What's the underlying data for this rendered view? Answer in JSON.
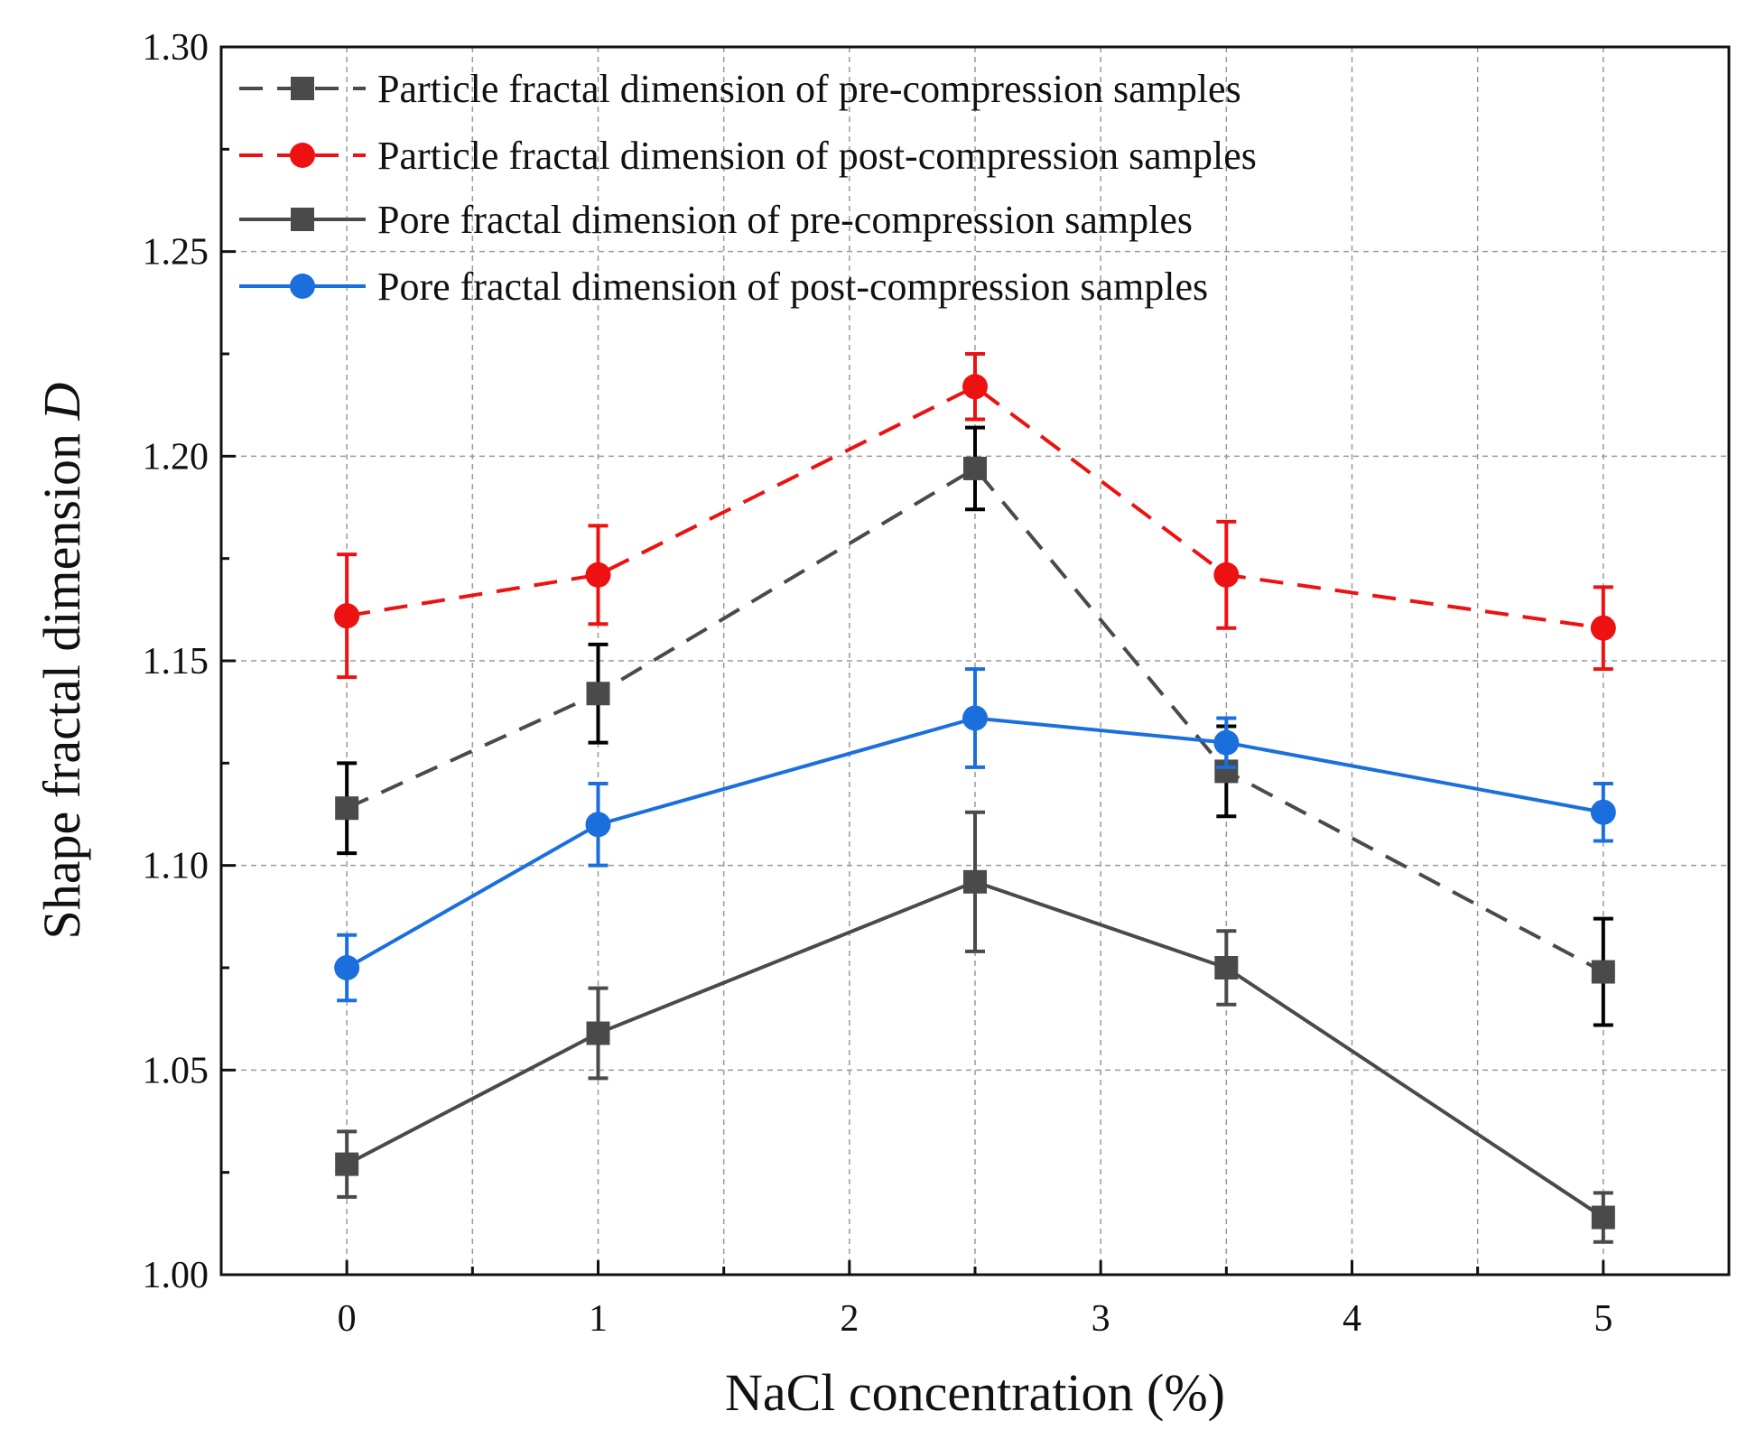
{
  "chart_data": {
    "type": "line",
    "title": "",
    "xlabel": "NaCl concentration (%)",
    "ylabel_prefix": "Shape fractal dimension ",
    "ylabel_var": "D",
    "xlim": [
      -0.5,
      5.5
    ],
    "ylim": [
      1.0,
      1.3
    ],
    "xticks": [
      0,
      1,
      2,
      3,
      4,
      5
    ],
    "yticks": [
      1.0,
      1.05,
      1.1,
      1.15,
      1.2,
      1.25,
      1.3
    ],
    "xtick_labels": [
      "0",
      "1",
      "2",
      "3",
      "4",
      "5"
    ],
    "ytick_labels": [
      "1.00",
      "1.05",
      "1.10",
      "1.15",
      "1.20",
      "1.25",
      "1.30"
    ],
    "grid": true,
    "legend_position": "top-left",
    "x": [
      0,
      1,
      2.5,
      3.5,
      5
    ],
    "series": [
      {
        "name": "Particle fractal dimension of pre-compression samples",
        "values": [
          1.114,
          1.142,
          1.197,
          1.123,
          1.074
        ],
        "errors": [
          0.011,
          0.012,
          0.01,
          0.011,
          0.013
        ],
        "color": "#4a4a4a",
        "error_color": "#000000",
        "line_style": "dashed",
        "marker": "square"
      },
      {
        "name": "Particle fractal dimension of post-compression samples",
        "values": [
          1.161,
          1.171,
          1.217,
          1.171,
          1.158
        ],
        "errors": [
          0.015,
          0.012,
          0.008,
          0.013,
          0.01
        ],
        "color": "#ee1111",
        "error_color": "#ee1111",
        "line_style": "dashed",
        "marker": "circle"
      },
      {
        "name": "Pore fractal dimension of pre-compression samples",
        "values": [
          1.027,
          1.059,
          1.096,
          1.075,
          1.014
        ],
        "errors": [
          0.008,
          0.011,
          0.017,
          0.009,
          0.006
        ],
        "color": "#4a4a4a",
        "error_color": "#4a4a4a",
        "line_style": "solid",
        "marker": "square"
      },
      {
        "name": "Pore fractal dimension of post-compression samples",
        "values": [
          1.075,
          1.11,
          1.136,
          1.13,
          1.113
        ],
        "errors": [
          0.008,
          0.01,
          0.012,
          0.006,
          0.007
        ],
        "color": "#1a6fdd",
        "error_color": "#1a6fdd",
        "line_style": "solid",
        "marker": "circle"
      }
    ]
  }
}
